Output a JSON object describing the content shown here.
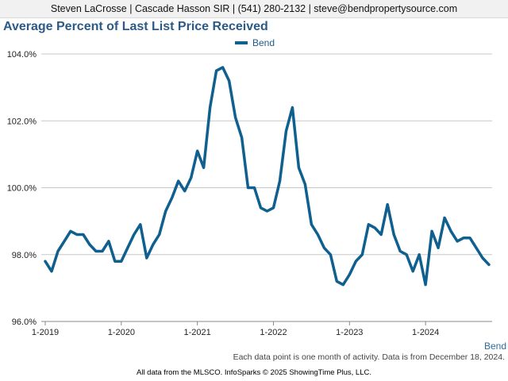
{
  "header": {
    "contact": "Steven LaCrosse | Cascade Hasson SIR | (541) 280-2132 | steve@bendpropertysource.com"
  },
  "footer": {
    "note": "Each data point is one month of activity. Data is from December 18, 2024.",
    "copyright": "All data from the MLSCO. InfoSparks © 2025 ShowingTime Plus, LLC.",
    "corner_label": "Bend"
  },
  "colors": {
    "series": "#0f5f8f",
    "grid": "#c8c8c8",
    "title": "#2b5a86"
  },
  "chart_data": {
    "type": "line",
    "title": "Average Percent of Last List Price Received",
    "xlabel": "",
    "ylabel": "",
    "ylim": [
      96.0,
      104.0
    ],
    "yticks": [
      96.0,
      98.0,
      100.0,
      102.0,
      104.0
    ],
    "ytick_labels": [
      "96.0%",
      "98.0%",
      "100.0%",
      "102.0%",
      "104.0%"
    ],
    "xlim": [
      "2019-01",
      "2024-11"
    ],
    "xticks": [
      "2019-01",
      "2020-01",
      "2021-01",
      "2022-01",
      "2023-01",
      "2024-01"
    ],
    "xtick_labels": [
      "1-2019",
      "1-2020",
      "1-2021",
      "1-2022",
      "1-2023",
      "1-2024"
    ],
    "legend": "top-center",
    "grid": true,
    "series": [
      {
        "name": "Bend",
        "x": [
          "2019-01",
          "2019-02",
          "2019-03",
          "2019-04",
          "2019-05",
          "2019-06",
          "2019-07",
          "2019-08",
          "2019-09",
          "2019-10",
          "2019-11",
          "2019-12",
          "2020-01",
          "2020-02",
          "2020-03",
          "2020-04",
          "2020-05",
          "2020-06",
          "2020-07",
          "2020-08",
          "2020-09",
          "2020-10",
          "2020-11",
          "2020-12",
          "2021-01",
          "2021-02",
          "2021-03",
          "2021-04",
          "2021-05",
          "2021-06",
          "2021-07",
          "2021-08",
          "2021-09",
          "2021-10",
          "2021-11",
          "2021-12",
          "2022-01",
          "2022-02",
          "2022-03",
          "2022-04",
          "2022-05",
          "2022-06",
          "2022-07",
          "2022-08",
          "2022-09",
          "2022-10",
          "2022-11",
          "2022-12",
          "2023-01",
          "2023-02",
          "2023-03",
          "2023-04",
          "2023-05",
          "2023-06",
          "2023-07",
          "2023-08",
          "2023-09",
          "2023-10",
          "2023-11",
          "2023-12",
          "2024-01",
          "2024-02",
          "2024-03",
          "2024-04",
          "2024-05",
          "2024-06",
          "2024-07",
          "2024-08",
          "2024-09",
          "2024-10",
          "2024-11"
        ],
        "values": [
          97.8,
          97.5,
          98.1,
          98.4,
          98.7,
          98.6,
          98.6,
          98.3,
          98.1,
          98.1,
          98.4,
          97.8,
          97.8,
          98.2,
          98.6,
          98.9,
          97.9,
          98.3,
          98.6,
          99.3,
          99.7,
          100.2,
          99.9,
          100.3,
          101.1,
          100.6,
          102.4,
          103.5,
          103.6,
          103.2,
          102.1,
          101.5,
          100.0,
          100.0,
          99.4,
          99.3,
          99.4,
          100.2,
          101.7,
          102.4,
          100.6,
          100.1,
          98.9,
          98.6,
          98.2,
          98.0,
          97.2,
          97.1,
          97.4,
          97.8,
          98.0,
          98.9,
          98.8,
          98.6,
          99.5,
          98.6,
          98.1,
          98.0,
          97.5,
          98.0,
          97.1,
          98.7,
          98.2,
          99.1,
          98.7,
          98.4,
          98.5,
          98.5,
          98.2,
          97.9,
          97.7
        ]
      }
    ]
  }
}
